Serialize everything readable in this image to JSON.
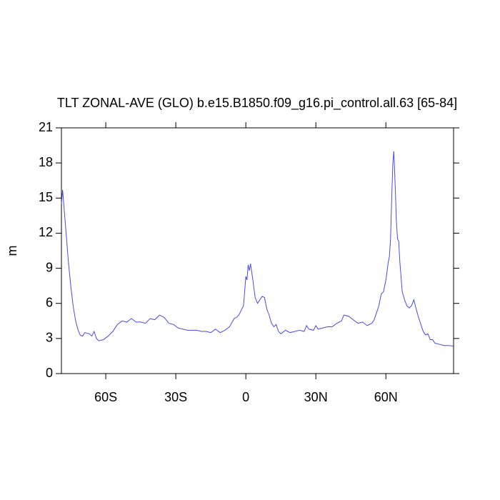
{
  "chart_data": {
    "type": "line",
    "title": "TLT ZONAL-AVE (GLO) b.e15.B1850.f09_g16.pi_control.all.63 [65-84]",
    "ylabel": "m",
    "x": [
      -79,
      -78.5,
      -77,
      -76,
      -75,
      -74,
      -73,
      -72,
      -71,
      -70,
      -69,
      -67,
      -66,
      -65,
      -64,
      -63,
      -61,
      -59,
      -57,
      -55,
      -53,
      -51,
      -49,
      -47,
      -45,
      -43,
      -41,
      -39,
      -37,
      -35,
      -33,
      -31,
      -29,
      -27,
      -25,
      -23,
      -21,
      -19,
      -17,
      -15,
      -13,
      -11,
      -9,
      -7,
      -5,
      -4,
      -3,
      -2,
      -1,
      -0.5,
      0,
      0.5,
      1,
      1.5,
      2,
      3,
      4,
      5,
      6,
      7,
      8,
      9,
      10,
      11,
      12,
      13,
      14,
      15,
      17,
      19,
      21,
      23,
      25,
      26,
      27,
      29,
      30,
      31,
      33,
      35,
      37,
      39,
      41,
      42,
      44,
      46,
      48,
      50,
      52,
      54,
      55,
      56,
      57,
      58,
      59,
      60,
      61,
      61.5,
      62,
      62.5,
      63,
      63.4,
      64,
      64.5,
      65,
      65.5,
      66,
      67,
      68,
      69,
      70,
      71,
      72,
      73,
      74,
      75,
      76,
      77,
      78,
      79,
      80,
      81,
      83,
      85,
      87,
      89
    ],
    "series": [
      {
        "name": "TLT",
        "color": "#4a4ae8",
        "values": [
          14.5,
          15.7,
          12,
          9.5,
          7.5,
          5.8,
          4.6,
          3.8,
          3.3,
          3.2,
          3.5,
          3.4,
          3.2,
          3.6,
          3.0,
          2.8,
          2.9,
          3.2,
          3.6,
          4.2,
          4.5,
          4.4,
          4.7,
          4.4,
          4.4,
          4.3,
          4.7,
          4.6,
          5.0,
          4.8,
          4.3,
          4.2,
          3.9,
          3.8,
          3.7,
          3.7,
          3.7,
          3.6,
          3.6,
          3.5,
          3.8,
          3.5,
          3.7,
          4.0,
          4.7,
          4.8,
          5.0,
          5.4,
          5.8,
          7.0,
          8.3,
          8.0,
          9.3,
          8.8,
          9.4,
          8.0,
          6.5,
          6.0,
          6.3,
          6.6,
          6.5,
          5.5,
          5.0,
          4.3,
          4.0,
          4.2,
          3.6,
          3.4,
          3.7,
          3.5,
          3.6,
          3.7,
          3.6,
          4.1,
          3.8,
          3.7,
          4.1,
          3.8,
          3.9,
          4.0,
          4.0,
          4.3,
          4.5,
          5.0,
          4.9,
          4.6,
          4.3,
          4.4,
          4.1,
          4.3,
          4.6,
          5.2,
          5.8,
          6.8,
          7.0,
          8.0,
          9.5,
          10,
          11.5,
          15,
          18,
          19.0,
          16,
          13,
          11.5,
          11.3,
          9.5,
          7.0,
          6.3,
          5.8,
          5.6,
          5.8,
          6.3,
          5.5,
          4.8,
          4.2,
          3.6,
          3.3,
          3.4,
          2.9,
          2.9,
          2.6,
          2.5,
          2.4,
          2.4,
          2.35
        ]
      }
    ],
    "xlim": [
      -79,
      89
    ],
    "xticks": [
      {
        "value": -60,
        "label": "60S"
      },
      {
        "value": -30,
        "label": "30S"
      },
      0,
      {
        "value": 30,
        "label": "30N"
      },
      {
        "value": 60,
        "label": "60N"
      }
    ],
    "ylim": [
      0,
      21
    ],
    "yticks": [
      0,
      3,
      6,
      9,
      12,
      15,
      18,
      21
    ]
  }
}
